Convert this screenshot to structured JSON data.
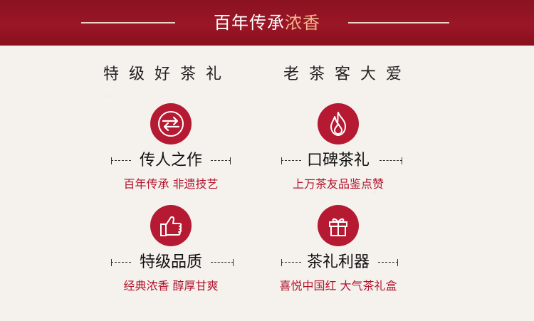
{
  "banner": {
    "title_main": "百年传承",
    "title_highlight": "浓香"
  },
  "slogan": {
    "left": "特级好茶礼",
    "right": "老茶客大爱"
  },
  "features": [
    {
      "icon": "exchange-arrows-icon",
      "title": "传人之作",
      "subtitle": "百年传承 非遗技艺"
    },
    {
      "icon": "flame-icon",
      "title": "口碑茶礼",
      "subtitle": "上万茶友品鉴点赞"
    },
    {
      "icon": "thumbs-up-icon",
      "title": "特级品质",
      "subtitle": "经典浓香 醇厚甘爽"
    },
    {
      "icon": "gift-box-icon",
      "title": "茶礼利器",
      "subtitle": "喜悦中国红 大气茶礼盒"
    }
  ],
  "colors": {
    "banner_red": "#8b1220",
    "accent_red": "#b51a32",
    "highlight": "#f4b58f"
  }
}
